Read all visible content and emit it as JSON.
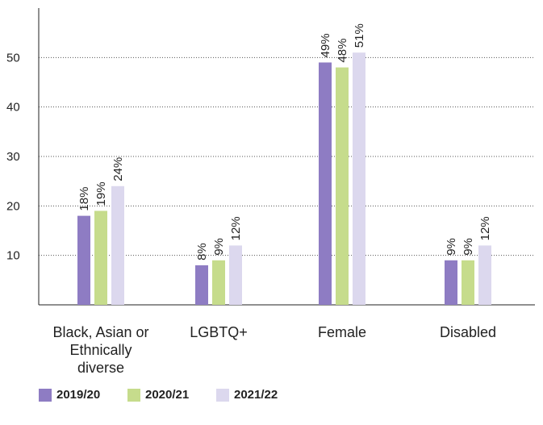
{
  "chart_data": {
    "type": "bar",
    "categories": [
      "Black, Asian or Ethnically diverse",
      "LGBTQ+",
      "Female",
      "Disabled"
    ],
    "series": [
      {
        "name": "2019/20",
        "color": "#8e7cc3",
        "values": [
          18,
          8,
          49,
          9
        ],
        "value_labels": [
          "18%",
          "8%",
          "49%",
          "9%"
        ]
      },
      {
        "name": "2020/21",
        "color": "#c6dc8c",
        "values": [
          19,
          9,
          48,
          9
        ],
        "value_labels": [
          "19%",
          "9%",
          "48%",
          "9%"
        ]
      },
      {
        "name": "2021/22",
        "color": "#dcd8ee",
        "values": [
          24,
          12,
          51,
          12
        ],
        "value_labels": [
          "24%",
          "12%",
          "51%",
          "12%"
        ]
      }
    ],
    "ylim": [
      0,
      60
    ],
    "yticks": [
      10,
      20,
      30,
      40,
      50
    ],
    "grid": true
  }
}
